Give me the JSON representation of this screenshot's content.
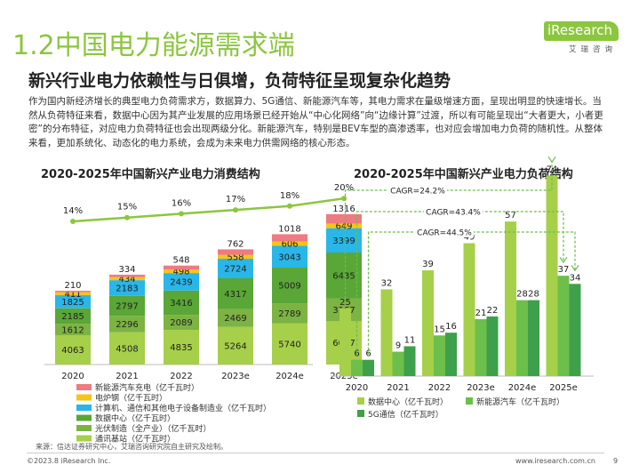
{
  "header": {
    "title": "1.2中国电力能源需求端",
    "subtitle": "新兴行业电力依赖性与日俱增，负荷特征呈现复杂化趋势",
    "paragraph": "作为国内新经济增长的典型电力负荷需求方，数据算力、5G通信、新能源汽车等，其电力需求在量级增速方面，呈现出明显的快速增长。当然从负荷特征来看，数据中心因为其产业发展的应用场景已经开始从“中心化网络”向“边缘计算”过渡，所以有可能呈现出“大者更大，小者更密”的分布特征，对应电力负荷特征也会出现两级分化。新能源汽车，特别是BEV车型的高渗透率，也对应会增加电力负荷的随机性。从整体来看，更加系统化、动态化的电力系统，会成为未来电力供需网络的核心形态。"
  },
  "logo": {
    "text": "iResearch",
    "cn": "艾瑞咨询"
  },
  "footer": {
    "source": "来源：信达证券研究中心，艾瑞咨询研究院自主研究及绘制。",
    "copyright": "©2023.8 iResearch Inc.",
    "site": "www.iresearch.com.cn",
    "page": "9"
  },
  "chart_data": [
    {
      "type": "bar",
      "stacked": true,
      "title": "2020-2025年中国新兴产业电力消费结构",
      "categories": [
        "2020",
        "2021",
        "2022",
        "2023e",
        "2024e",
        "2025e"
      ],
      "series": [
        {
          "name": "通讯基站（亿千瓦时）",
          "color": "#a6cf4a",
          "values": [
            4063,
            4508,
            4835,
            5264,
            5740,
            6047
          ]
        },
        {
          "name": "光伏制造（全产业）（亿千瓦时）",
          "color": "#7cb342",
          "values": [
            1612,
            2296,
            2089,
            2469,
            2789,
            3167
          ]
        },
        {
          "name": "数据中心（亿千瓦时）",
          "color": "#5aa636",
          "values": [
            2185,
            2797,
            3416,
            4317,
            5009,
            6435
          ]
        },
        {
          "name": "计算机、通信和其他电子设备制造业（亿千瓦时）",
          "color": "#29b6e8",
          "values": [
            1825,
            2183,
            2439,
            2724,
            3043,
            3399
          ]
        },
        {
          "name": "电炉钢（亿千瓦时）",
          "color": "#f5c518",
          "values": [
            411,
            434,
            498,
            558,
            606,
            649
          ]
        },
        {
          "name": "新能源汽车充电（亿千瓦时）",
          "color": "#ef7a82",
          "values": [
            210,
            334,
            548,
            762,
            1018,
            1316
          ]
        }
      ],
      "line": {
        "values": [
          14,
          15,
          16,
          17,
          18,
          20
        ],
        "labels": [
          "14%",
          "15%",
          "16%",
          "17%",
          "18%",
          "20%"
        ],
        "color": "#8cc63f"
      },
      "legend": "bottom"
    },
    {
      "type": "bar",
      "title": "2020-2025年中国新兴产业电力负荷结构",
      "categories": [
        "2020",
        "2021",
        "2022",
        "2023e",
        "2024e",
        "2025e"
      ],
      "series": [
        {
          "name": "数据中心（亿千瓦时）",
          "color": "#a6cf4a",
          "values": [
            25,
            32,
            39,
            49,
            57,
            74
          ]
        },
        {
          "name": "新能源汽车（亿千瓦时）",
          "color": "#6cbf4a",
          "values": [
            6,
            9,
            15,
            21,
            28,
            37
          ]
        },
        {
          "name": "5G通信（亿千瓦时）",
          "color": "#3ea04a",
          "values": [
            6,
            11,
            16,
            22,
            28,
            34
          ]
        }
      ],
      "annotations": [
        "CAGR=24.2%",
        "CAGR=43.4%",
        "CAGR=44.5%"
      ],
      "legend": "bottom"
    }
  ]
}
